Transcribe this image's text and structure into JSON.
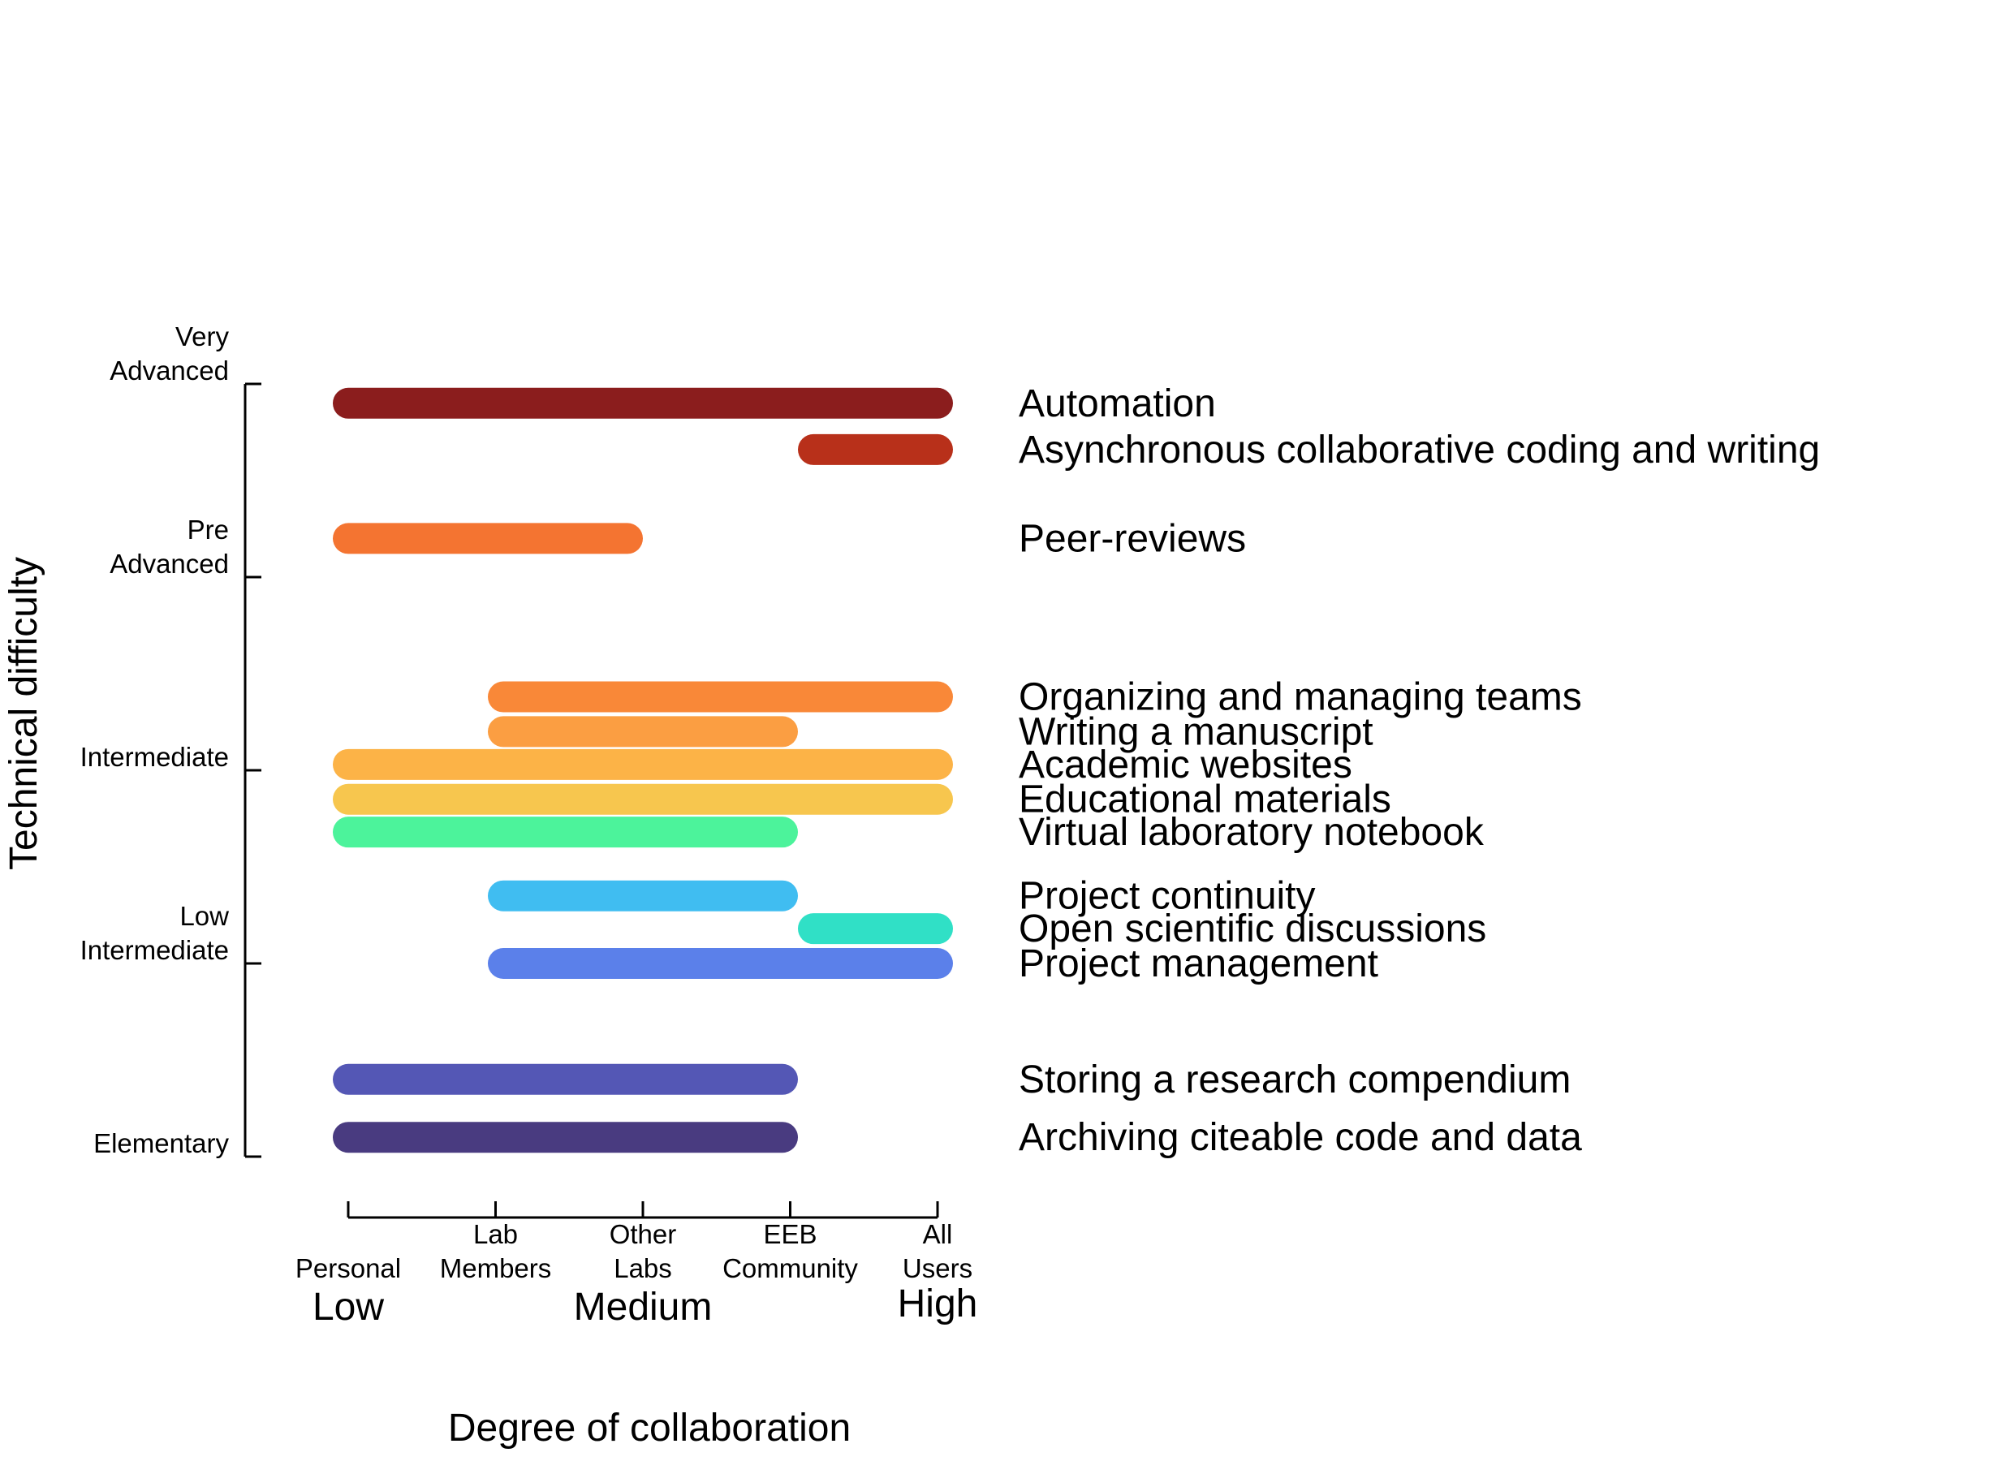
{
  "chart_data": {
    "type": "range-bar",
    "title": "",
    "xlabel": "Degree of collaboration",
    "ylabel": "Technical difficulty",
    "x_ticks": [
      {
        "value": 0,
        "lines": [
          "",
          "Personal"
        ]
      },
      {
        "value": 1,
        "lines": [
          "Lab",
          "Members"
        ]
      },
      {
        "value": 2,
        "lines": [
          "Other",
          "Labs"
        ]
      },
      {
        "value": 3,
        "lines": [
          "EEB",
          "Community"
        ]
      },
      {
        "value": 4,
        "lines": [
          "All",
          "Users"
        ]
      }
    ],
    "x_level_labels": [
      {
        "value": 0,
        "text": "Low"
      },
      {
        "value": 2,
        "text": "Medium"
      },
      {
        "value": 4,
        "text": "High"
      }
    ],
    "y_ticks": [
      {
        "value": 0,
        "lines": [
          "",
          "Elementary"
        ]
      },
      {
        "value": 1,
        "lines": [
          "Low",
          "Intermediate"
        ]
      },
      {
        "value": 2,
        "lines": [
          "",
          "Intermediate"
        ]
      },
      {
        "value": 3,
        "lines": [
          "Pre",
          "Advanced"
        ]
      },
      {
        "value": 4,
        "lines": [
          "Very",
          "Advanced"
        ]
      }
    ],
    "xlim": [
      0,
      4
    ],
    "ylim": [
      0,
      4
    ],
    "series": [
      {
        "name": "Automation",
        "x_start": 0,
        "x_end": 4,
        "y": 3.9,
        "color": "#8b1d1d"
      },
      {
        "name": "Asynchronous collaborative coding and writing",
        "x_start": 3,
        "x_end": 4,
        "y": 3.66,
        "color": "#b8301a"
      },
      {
        "name": "Peer-reviews",
        "x_start": 0,
        "x_end": 2,
        "y": 3.2,
        "color": "#f47431"
      },
      {
        "name": "Organizing and managing teams",
        "x_start": 1,
        "x_end": 4,
        "y": 2.38,
        "color": "#f98838"
      },
      {
        "name": "Writing a manuscript",
        "x_start": 1,
        "x_end": 3,
        "y": 2.2,
        "color": "#fb9e42"
      },
      {
        "name": "Academic websites",
        "x_start": 0,
        "x_end": 4,
        "y": 2.03,
        "color": "#fcb347"
      },
      {
        "name": "Educational materials",
        "x_start": 0,
        "x_end": 4,
        "y": 1.85,
        "color": "#f7c64e"
      },
      {
        "name": "Virtual laboratory notebook",
        "x_start": 0,
        "x_end": 3,
        "y": 1.68,
        "color": "#4cf39b"
      },
      {
        "name": "Project continuity",
        "x_start": 1,
        "x_end": 3,
        "y": 1.35,
        "color": "#40bdf1"
      },
      {
        "name": "Open scientific discussions",
        "x_start": 3,
        "x_end": 4,
        "y": 1.18,
        "color": "#30e0c6"
      },
      {
        "name": "Project management",
        "x_start": 1,
        "x_end": 4,
        "y": 1.0,
        "color": "#5b80ea"
      },
      {
        "name": "Storing a research compendium",
        "x_start": 0,
        "x_end": 3,
        "y": 0.4,
        "color": "#5457b5"
      },
      {
        "name": "Archiving citeable code and data",
        "x_start": 0,
        "x_end": 3,
        "y": 0.1,
        "color": "#493b80"
      }
    ]
  }
}
